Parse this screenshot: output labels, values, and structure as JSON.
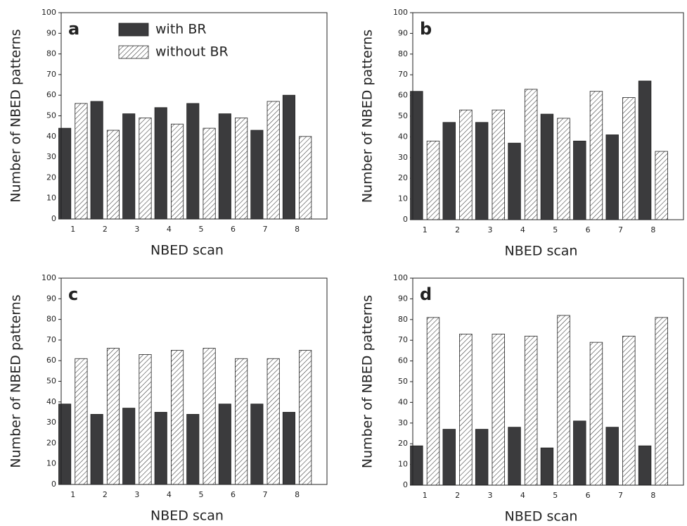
{
  "chart_data": [
    {
      "type": "bar",
      "panel_label": "a",
      "x_label": "NBED scan",
      "y_label": "Number of NBED patterns",
      "categories": [
        "1",
        "2",
        "3",
        "4",
        "5",
        "6",
        "7",
        "8"
      ],
      "series": [
        {
          "name": "with BR",
          "color": "#3b3b3d",
          "pattern": "solid",
          "values": [
            44,
            57,
            51,
            54,
            56,
            51,
            43,
            60
          ]
        },
        {
          "name": "without BR",
          "color": "#ffffff",
          "pattern": "hatch",
          "values": [
            56,
            43,
            49,
            46,
            44,
            49,
            57,
            40
          ]
        }
      ],
      "ylim": [
        0,
        100
      ],
      "yticks": [
        0,
        10,
        20,
        30,
        40,
        50,
        60,
        70,
        80,
        90,
        100
      ],
      "legend": "top-left"
    },
    {
      "type": "bar",
      "panel_label": "b",
      "x_label": "NBED scan",
      "y_label": "Number of NBED patterns",
      "categories": [
        "1",
        "2",
        "3",
        "4",
        "5",
        "6",
        "7",
        "8"
      ],
      "series": [
        {
          "color": "#3b3b3d",
          "pattern": "solid",
          "values": [
            62,
            47,
            47,
            37,
            51,
            38,
            41,
            67
          ]
        },
        {
          "color": "#ffffff",
          "pattern": "hatch",
          "values": [
            38,
            53,
            53,
            63,
            49,
            62,
            59,
            33
          ]
        }
      ],
      "ylim": [
        0,
        100
      ],
      "yticks": [
        0,
        10,
        20,
        30,
        40,
        50,
        60,
        70,
        80,
        90,
        100
      ]
    },
    {
      "type": "bar",
      "panel_label": "c",
      "x_label": "NBED scan",
      "y_label": "Number of NBED patterns",
      "categories": [
        "1",
        "2",
        "3",
        "4",
        "5",
        "6",
        "7",
        "8"
      ],
      "series": [
        {
          "color": "#3b3b3d",
          "pattern": "solid",
          "values": [
            39,
            34,
            37,
            35,
            34,
            39,
            39,
            35
          ]
        },
        {
          "color": "#ffffff",
          "pattern": "hatch",
          "values": [
            61,
            66,
            63,
            65,
            66,
            61,
            61,
            65
          ]
        }
      ],
      "ylim": [
        0,
        100
      ],
      "yticks": [
        0,
        10,
        20,
        30,
        40,
        50,
        60,
        70,
        80,
        90,
        100
      ]
    },
    {
      "type": "bar",
      "panel_label": "d",
      "x_label": "NBED scan",
      "y_label": "Number of NBED patterns",
      "categories": [
        "1",
        "2",
        "3",
        "4",
        "5",
        "6",
        "7",
        "8"
      ],
      "series": [
        {
          "color": "#3b3b3d",
          "pattern": "solid",
          "values": [
            19,
            27,
            27,
            28,
            18,
            31,
            28,
            19
          ]
        },
        {
          "color": "#ffffff",
          "pattern": "hatch",
          "values": [
            81,
            73,
            73,
            72,
            82,
            69,
            72,
            81
          ]
        }
      ],
      "ylim": [
        0,
        100
      ],
      "yticks": [
        0,
        10,
        20,
        30,
        40,
        50,
        60,
        70,
        80,
        90,
        100
      ]
    }
  ]
}
